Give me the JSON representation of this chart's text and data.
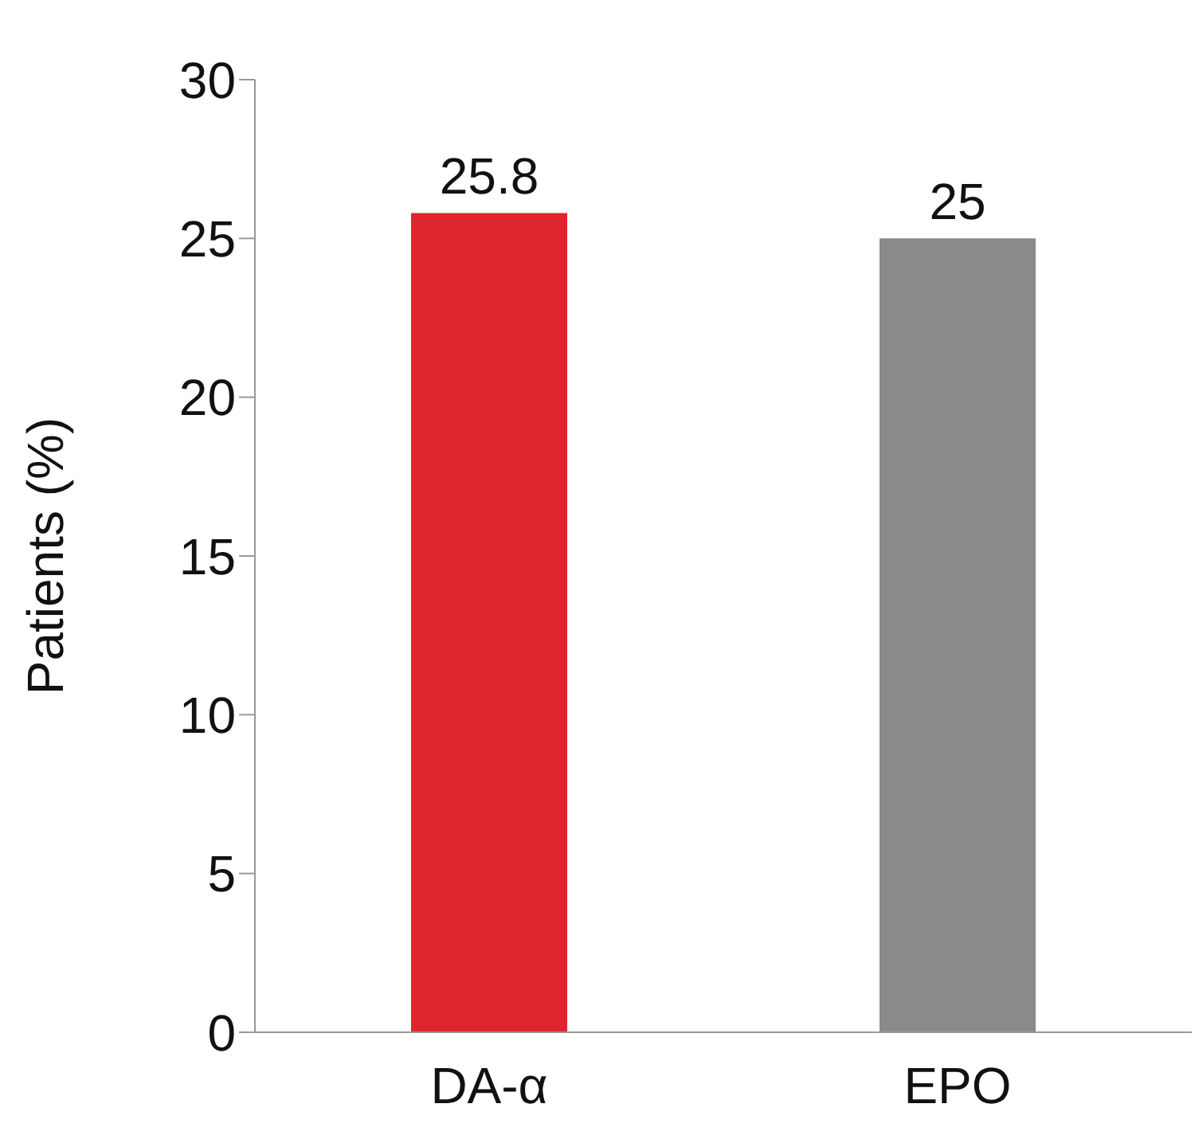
{
  "chart_data": {
    "type": "bar",
    "ylabel": "Patients (%)",
    "categories": [
      "DA-α",
      "EPO"
    ],
    "values": [
      25.8,
      25
    ],
    "colors": [
      "#e0242b",
      "#8a8a8c"
    ],
    "ylim": [
      0,
      30
    ],
    "yticks": [
      0,
      5,
      10,
      15,
      20,
      25,
      30
    ],
    "grid": false,
    "data_labels": true
  }
}
